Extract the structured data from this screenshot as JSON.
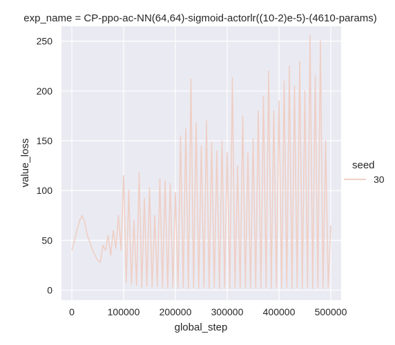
{
  "chart_data": {
    "type": "line",
    "title": "exp_name = CP-ppo-ac-NN(64,64)-sigmoid-actorlr((10-2)e-5)-(4610-params)",
    "xlabel": "global_step",
    "ylabel": "value_loss",
    "xlim": [
      -20000,
      520000
    ],
    "ylim": [
      -10,
      265
    ],
    "xticks": [
      0,
      100000,
      200000,
      300000,
      400000,
      500000
    ],
    "xtick_labels": [
      "0",
      "100000",
      "200000",
      "300000",
      "400000",
      "500000"
    ],
    "yticks": [
      0,
      50,
      100,
      150,
      200,
      250
    ],
    "ytick_labels": [
      "0",
      "50",
      "100",
      "150",
      "200",
      "250"
    ],
    "grid": true,
    "legend": {
      "title": "seed",
      "placement": "right",
      "entries": [
        "30"
      ]
    },
    "series": [
      {
        "name": "30",
        "color": "#efcfc5",
        "x": [
          0,
          5000,
          10000,
          15000,
          20000,
          25000,
          30000,
          35000,
          40000,
          45000,
          50000,
          55000,
          60000,
          65000,
          70000,
          75000,
          80000,
          85000,
          90000,
          95000,
          100000,
          105000,
          110000,
          115000,
          120000,
          125000,
          130000,
          135000,
          140000,
          145000,
          150000,
          155000,
          160000,
          165000,
          170000,
          175000,
          180000,
          185000,
          190000,
          195000,
          200000,
          205000,
          210000,
          215000,
          220000,
          225000,
          230000,
          235000,
          240000,
          245000,
          250000,
          255000,
          260000,
          265000,
          270000,
          275000,
          280000,
          285000,
          290000,
          295000,
          300000,
          305000,
          310000,
          315000,
          320000,
          325000,
          330000,
          335000,
          340000,
          345000,
          350000,
          355000,
          360000,
          365000,
          370000,
          375000,
          380000,
          385000,
          390000,
          395000,
          400000,
          405000,
          410000,
          415000,
          420000,
          425000,
          430000,
          435000,
          440000,
          445000,
          450000,
          455000,
          460000,
          465000,
          470000,
          475000,
          480000,
          485000,
          490000,
          495000,
          500000
        ],
        "y": [
          40,
          50,
          60,
          70,
          75,
          68,
          55,
          48,
          40,
          35,
          30,
          28,
          45,
          40,
          55,
          35,
          60,
          42,
          75,
          40,
          115,
          8,
          100,
          6,
          70,
          5,
          118,
          3,
          92,
          4,
          103,
          3,
          75,
          4,
          112,
          3,
          110,
          2,
          107,
          3,
          98,
          2,
          155,
          3,
          162,
          2,
          212,
          3,
          168,
          2,
          145,
          3,
          170,
          2,
          148,
          3,
          140,
          2,
          150,
          3,
          138,
          2,
          213,
          3,
          125,
          2,
          175,
          3,
          138,
          2,
          152,
          3,
          180,
          2,
          195,
          3,
          220,
          2,
          180,
          3,
          190,
          2,
          210,
          3,
          225,
          2,
          205,
          3,
          230,
          2,
          200,
          3,
          256,
          2,
          215,
          3,
          250,
          2,
          150,
          3,
          65
        ]
      }
    ]
  }
}
